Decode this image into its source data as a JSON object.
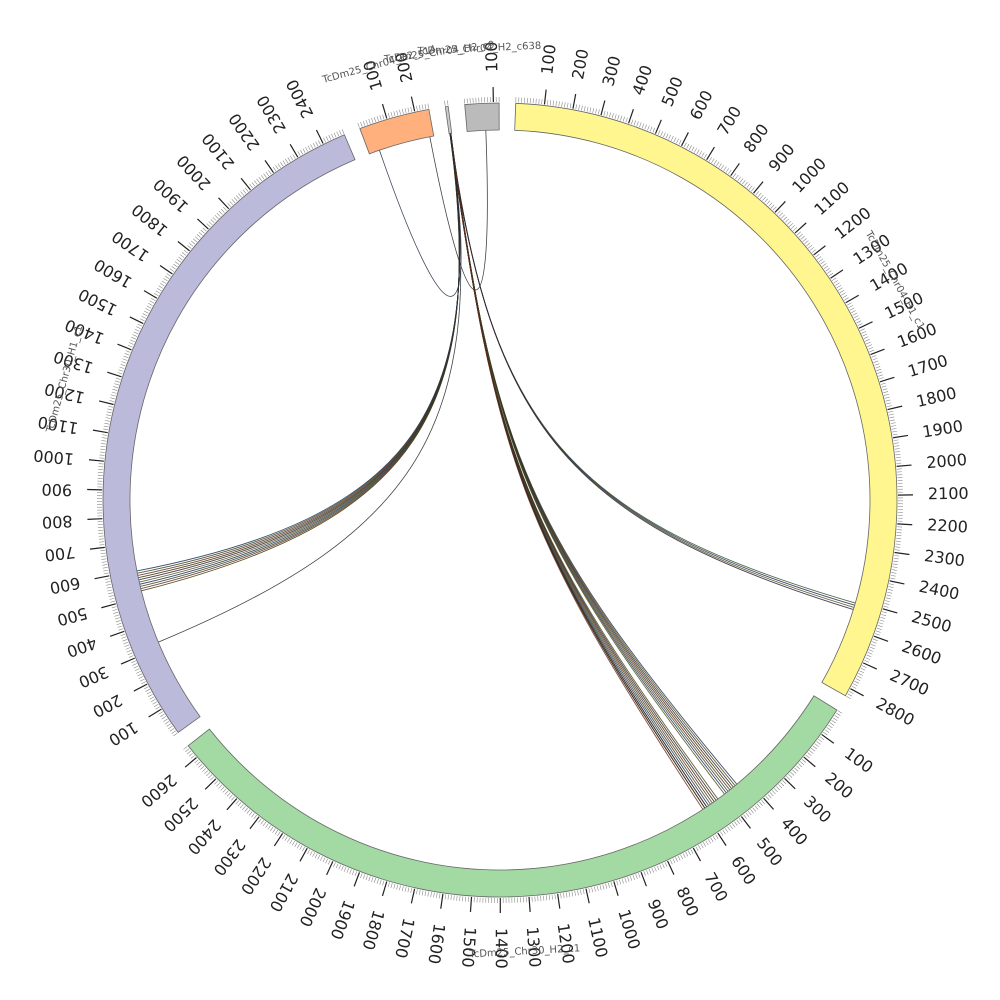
{
  "chart_data": {
    "type": "chord",
    "tick_step": 100,
    "segments": [
      {
        "id": "h2_c638",
        "name": "TcDm25_Chr04_H2_c638",
        "length": 120,
        "color": "#bbbbbb",
        "label_text": "TcDm25_Chr04_H2_c638",
        "ticks": [
          "100"
        ]
      },
      {
        "id": "h1_c1",
        "name": "TcDm25_Chr04_H1_c1",
        "length": 2830,
        "color": "#fff68f",
        "label_text": "TcDm25_Chr04_H1_c1",
        "ticks": [
          "100",
          "200",
          "300",
          "400",
          "500",
          "600",
          "700",
          "800",
          "900",
          "1000",
          "1100",
          "1200",
          "1300",
          "1400",
          "1500",
          "1600",
          "1700",
          "1800",
          "1900",
          "2000",
          "2100",
          "2200",
          "2300",
          "2400",
          "2500",
          "2600",
          "2700",
          "2800"
        ]
      },
      {
        "id": "chr30_h2",
        "name": "TcDm25_Chr30_H2_c1",
        "length": 2650,
        "color": "#a3d9a3",
        "label_text": "TcDm25_Chr30_H2_c1",
        "ticks": [
          "100",
          "200",
          "300",
          "400",
          "500",
          "600",
          "700",
          "800",
          "900",
          "1000",
          "1100",
          "1200",
          "1300",
          "1400",
          "1500",
          "1600",
          "1700",
          "1800",
          "1900",
          "2000",
          "2100",
          "2200",
          "2300",
          "2400",
          "2500",
          "2600"
        ]
      },
      {
        "id": "chr30_h1",
        "name": "TcDm25_Chr30_H1_c1",
        "length": 2480,
        "color": "#bcbadb",
        "label_text": "TcDm25_Chr30_H1_c1",
        "ticks": [
          "100",
          "200",
          "300",
          "400",
          "500",
          "600",
          "700",
          "800",
          "900",
          "1000",
          "1100",
          "1200",
          "1300",
          "1400",
          "1500",
          "1600",
          "1700",
          "1800",
          "1900",
          "2000",
          "2100",
          "2200",
          "2300",
          "2400"
        ]
      },
      {
        "id": "h2_c14",
        "name": "TcDm25_Chr04_H2_c14",
        "length": 250,
        "color": "#ffb07c",
        "label_text": "TcDm25_Chr04_H2_c14",
        "ticks": [
          "100",
          "200"
        ]
      },
      {
        "id": "h2_c9",
        "name": "TcDm25_Chr04_H2_c9",
        "length": 10,
        "color": "#cccccc",
        "label_text": "TcDm25_Chr04_H2_c9",
        "ticks": []
      }
    ],
    "links": [
      {
        "from": "h2_c9",
        "from_pos": 5,
        "to": "chr30_h1",
        "to_pos": 560,
        "color": "#333300",
        "count": 10
      },
      {
        "from": "h2_c9",
        "from_pos": 5,
        "to": "chr30_h1",
        "to_pos": 320,
        "color": "#222222",
        "count": 1
      },
      {
        "from": "h2_c9",
        "from_pos": 5,
        "to": "h1_c1",
        "to_pos": 2520,
        "color": "#333300",
        "count": 4
      },
      {
        "from": "h2_c9",
        "from_pos": 5,
        "to": "chr30_h2",
        "to_pos": 470,
        "color": "#1d3a3a",
        "count": 8
      },
      {
        "from": "h2_c9",
        "from_pos": 5,
        "to": "chr30_h2",
        "to_pos": 560,
        "color": "#2e2e1e",
        "count": 8
      },
      {
        "from": "h2_c9",
        "from_pos": 5,
        "to": "chr30_h2",
        "to_pos": 590,
        "color": "#1e2a40",
        "count": 3
      },
      {
        "from": "h2_c14",
        "from_pos": 235,
        "to": "h2_c638",
        "to_pos": 70,
        "color": "#222222",
        "count": 1
      },
      {
        "from": "h2_c14",
        "from_pos": 40,
        "to": "h2_c9",
        "to_pos": 5,
        "color": "#1e2a40",
        "count": 1
      }
    ]
  }
}
